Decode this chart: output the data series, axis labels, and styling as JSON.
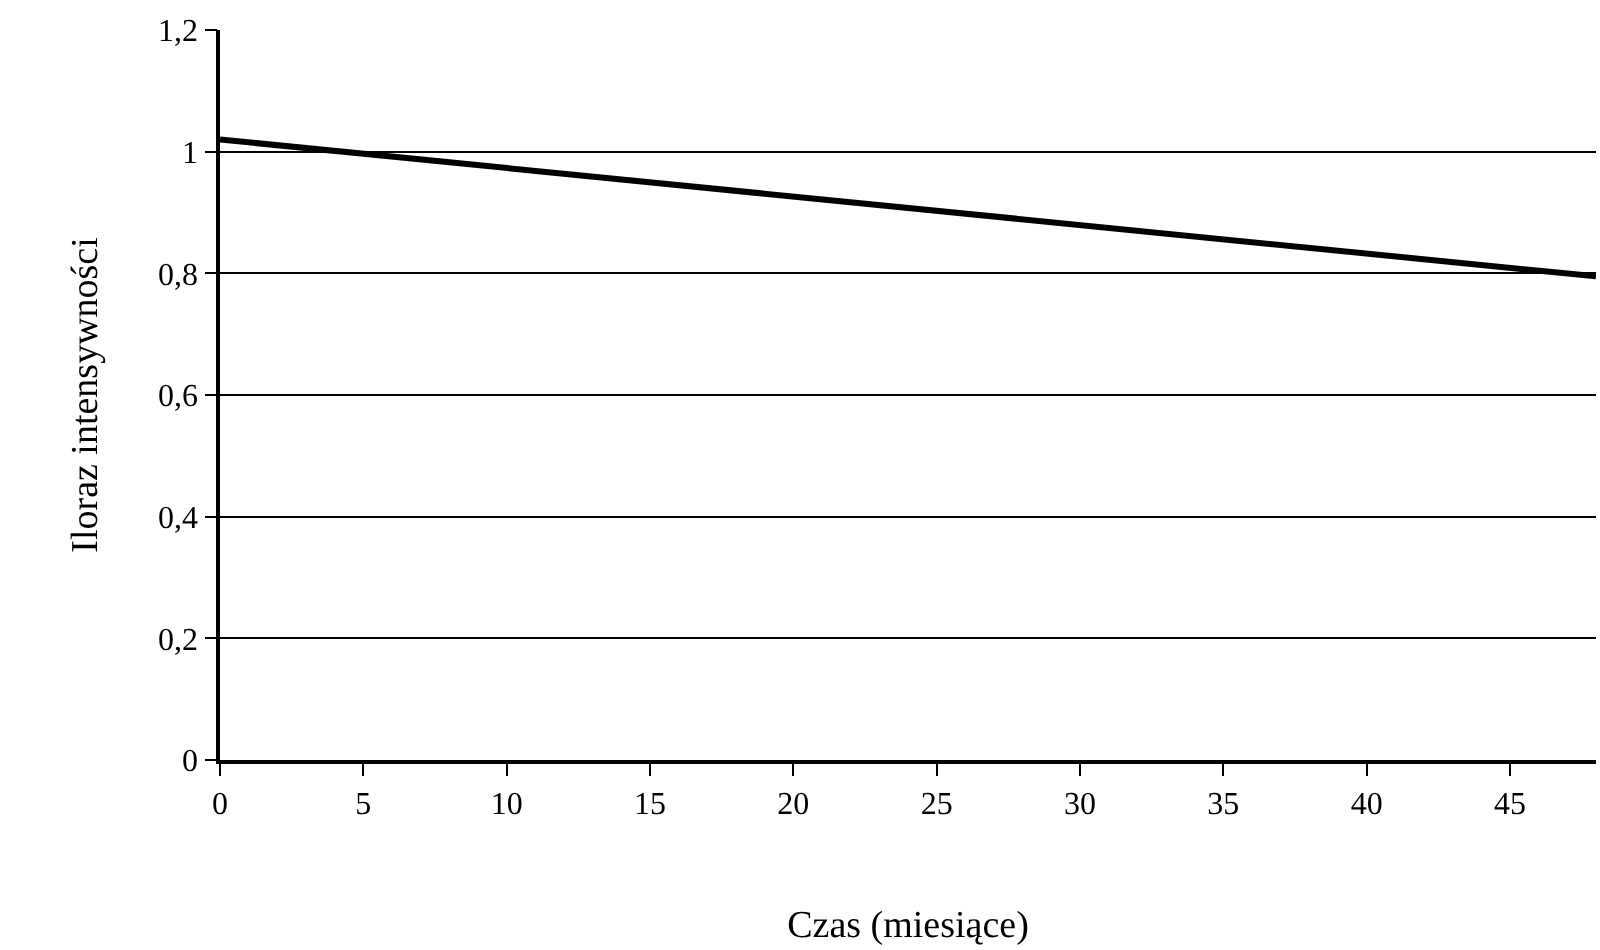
{
  "chart_data": {
    "type": "line",
    "xlabel": "Czas (miesiące)",
    "ylabel": "Iloraz intensywności",
    "x": [
      0,
      48
    ],
    "series": [
      {
        "color": "#000000",
        "values": [
          1.02,
          0.795
        ]
      }
    ],
    "xlim": [
      0,
      48
    ],
    "xticks": [
      0,
      5,
      10,
      15,
      20,
      25,
      30,
      35,
      40,
      45
    ],
    "ylim": [
      0,
      1.2
    ],
    "yticks": [
      {
        "value": 0,
        "label": "0"
      },
      {
        "value": 0.2,
        "label": "0,2"
      },
      {
        "value": 0.4,
        "label": "0,4"
      },
      {
        "value": 0.6,
        "label": "0,6"
      },
      {
        "value": 0.8,
        "label": "0,8"
      },
      {
        "value": 1,
        "label": "1"
      },
      {
        "value": 1.2,
        "label": "1,2"
      }
    ],
    "grid": "y",
    "legend": false,
    "marker": "none",
    "line_style": "solid"
  }
}
